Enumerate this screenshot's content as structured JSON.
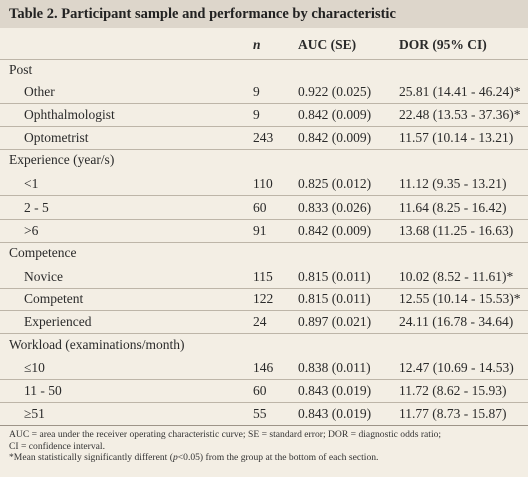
{
  "title": "Table 2. Participant sample and performance by characteristic",
  "columns": {
    "n": "n",
    "auc": "AUC (SE)",
    "dor": "DOR (95% CI)"
  },
  "sections": [
    {
      "label": "Post",
      "rows": [
        {
          "label": "Other",
          "n": "9",
          "auc": "0.922 (0.025)",
          "dor": "25.81 (14.41 - 46.24)*"
        },
        {
          "label": "Ophthalmologist",
          "n": "9",
          "auc": "0.842 (0.009)",
          "dor": "22.48 (13.53 - 37.36)*"
        },
        {
          "label": "Optometrist",
          "n": "243",
          "auc": "0.842 (0.009)",
          "dor": "11.57 (10.14 - 13.21)"
        }
      ]
    },
    {
      "label": "Experience (year/s)",
      "rows": [
        {
          "label": "<1",
          "n": "110",
          "auc": "0.825 (0.012)",
          "dor": "11.12 (9.35 - 13.21)"
        },
        {
          "label": "2 - 5",
          "n": "60",
          "auc": "0.833 (0.026)",
          "dor": "11.64 (8.25 - 16.42)"
        },
        {
          "label": ">6",
          "n": "91",
          "auc": "0.842 (0.009)",
          "dor": "13.68 (11.25 - 16.63)"
        }
      ]
    },
    {
      "label": "Competence",
      "rows": [
        {
          "label": "Novice",
          "n": "115",
          "auc": "0.815 (0.011)",
          "dor": "10.02 (8.52 - 11.61)*"
        },
        {
          "label": "Competent",
          "n": "122",
          "auc": "0.815 (0.011)",
          "dor": "12.55 (10.14 - 15.53)*"
        },
        {
          "label": "Experienced",
          "n": "24",
          "auc": "0.897 (0.021)",
          "dor": "24.11 (16.78 - 34.64)"
        }
      ]
    },
    {
      "label": "Workload (examinations/month)",
      "rows": [
        {
          "label": "≤10",
          "n": "146",
          "auc": "0.838 (0.011)",
          "dor": "12.47 (10.69 - 14.53)"
        },
        {
          "label": "11 - 50",
          "n": "60",
          "auc": "0.843 (0.019)",
          "dor": "11.72 (8.62 - 15.93)"
        },
        {
          "label": "≥51",
          "n": "55",
          "auc": "0.843 (0.019)",
          "dor": "11.77 (8.73 - 15.87)"
        }
      ]
    }
  ],
  "footnotes": {
    "line1": "AUC = area under the receiver operating characteristic curve; SE = standard error; DOR = diagnostic odds ratio;",
    "line2": "CI = confidence interval.",
    "line3_pre": "*Mean statistically significantly different (",
    "line3_p": "p",
    "line3_post": "<0.05) from the group at the bottom of each section."
  }
}
